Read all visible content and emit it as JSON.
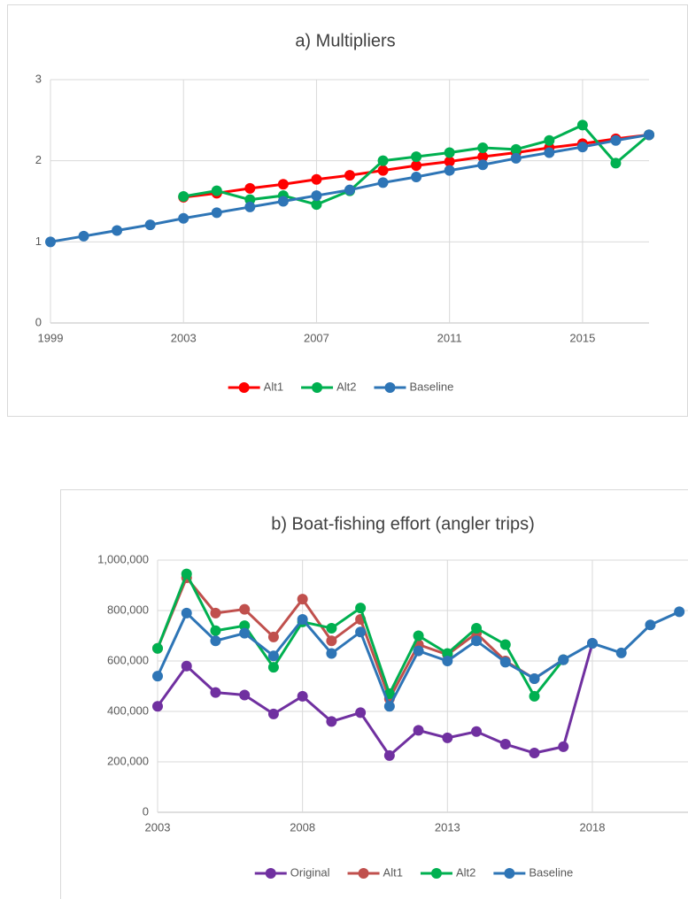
{
  "chart_data": [
    {
      "type": "line",
      "title": "a) Multipliers",
      "x": [
        1999,
        2000,
        2001,
        2002,
        2003,
        2004,
        2005,
        2006,
        2007,
        2008,
        2009,
        2010,
        2011,
        2012,
        2013,
        2014,
        2015,
        2016,
        2017
      ],
      "xlim": [
        1999,
        2017
      ],
      "xticks": [
        1999,
        2003,
        2007,
        2011,
        2015
      ],
      "ylim": [
        0,
        3
      ],
      "yticks": [
        0,
        1,
        2,
        3
      ],
      "grid": true,
      "legend": "bottom",
      "series": [
        {
          "name": "Alt1",
          "color": "#ff0000",
          "values": [
            null,
            null,
            null,
            null,
            1.55,
            1.6,
            1.66,
            1.71,
            1.77,
            1.82,
            1.88,
            1.94,
            1.99,
            2.05,
            2.1,
            2.16,
            2.21,
            2.27,
            2.32
          ]
        },
        {
          "name": "Alt2",
          "color": "#00b050",
          "values": [
            null,
            null,
            null,
            null,
            1.56,
            1.63,
            1.52,
            1.57,
            1.46,
            1.63,
            2.0,
            2.05,
            2.1,
            2.16,
            2.14,
            2.25,
            2.44,
            1.97,
            2.32
          ]
        },
        {
          "name": "Baseline",
          "color": "#2e75b6",
          "values": [
            1.0,
            1.07,
            1.14,
            1.21,
            1.29,
            1.36,
            1.43,
            1.5,
            1.57,
            1.64,
            1.73,
            1.8,
            1.88,
            1.95,
            2.03,
            2.1,
            2.17,
            2.25,
            2.32
          ]
        }
      ]
    },
    {
      "type": "line",
      "title": "b) Boat-fishing effort (angler trips)",
      "x": [
        2003,
        2004,
        2005,
        2006,
        2007,
        2008,
        2009,
        2010,
        2011,
        2012,
        2013,
        2014,
        2015,
        2016,
        2017,
        2018,
        2019,
        2020,
        2021
      ],
      "xlim": [
        2003,
        2021.3
      ],
      "xticks": [
        2003,
        2008,
        2013,
        2018
      ],
      "ylim": [
        0,
        1000000
      ],
      "yticks": [
        0,
        {
          "value": 200000,
          "label": "200,000"
        },
        {
          "value": 400000,
          "label": "400,000"
        },
        {
          "value": 600000,
          "label": "600,000"
        },
        {
          "value": 800000,
          "label": "800,000"
        },
        {
          "value": 1000000,
          "label": "1,000,000"
        }
      ],
      "grid": true,
      "legend": "bottom",
      "series": [
        {
          "name": "Original",
          "color": "#7030a0",
          "values": [
            420000,
            580000,
            475000,
            465000,
            390000,
            460000,
            360000,
            395000,
            225000,
            325000,
            295000,
            320000,
            270000,
            235000,
            260000,
            670000,
            null,
            null,
            null
          ]
        },
        {
          "name": "Alt1",
          "color": "#c0504d",
          "values": [
            650000,
            930000,
            790000,
            805000,
            695000,
            845000,
            680000,
            765000,
            450000,
            665000,
            625000,
            710000,
            600000,
            530000,
            605000,
            null,
            null,
            null,
            null
          ]
        },
        {
          "name": "Alt2",
          "color": "#00b050",
          "values": [
            650000,
            945000,
            720000,
            740000,
            575000,
            755000,
            730000,
            810000,
            470000,
            700000,
            630000,
            730000,
            665000,
            460000,
            605000,
            null,
            null,
            null,
            null
          ]
        },
        {
          "name": "Baseline",
          "color": "#2e75b6",
          "values": [
            540000,
            790000,
            680000,
            710000,
            620000,
            765000,
            630000,
            715000,
            420000,
            640000,
            600000,
            680000,
            595000,
            530000,
            605000,
            670000,
            632000,
            743000,
            795000
          ]
        }
      ]
    }
  ]
}
